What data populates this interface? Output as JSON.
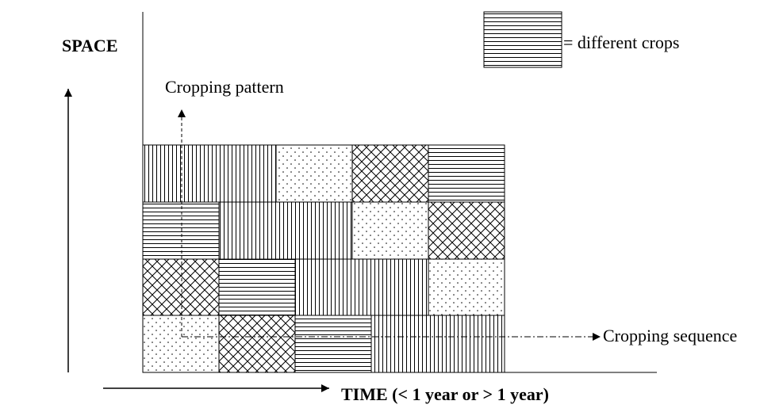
{
  "labels": {
    "space": "SPACE",
    "legend": "= different crops",
    "pattern": "Cropping pattern",
    "sequence": "Cropping sequence",
    "time": "TIME (< 1 year or > 1 year)"
  }
}
